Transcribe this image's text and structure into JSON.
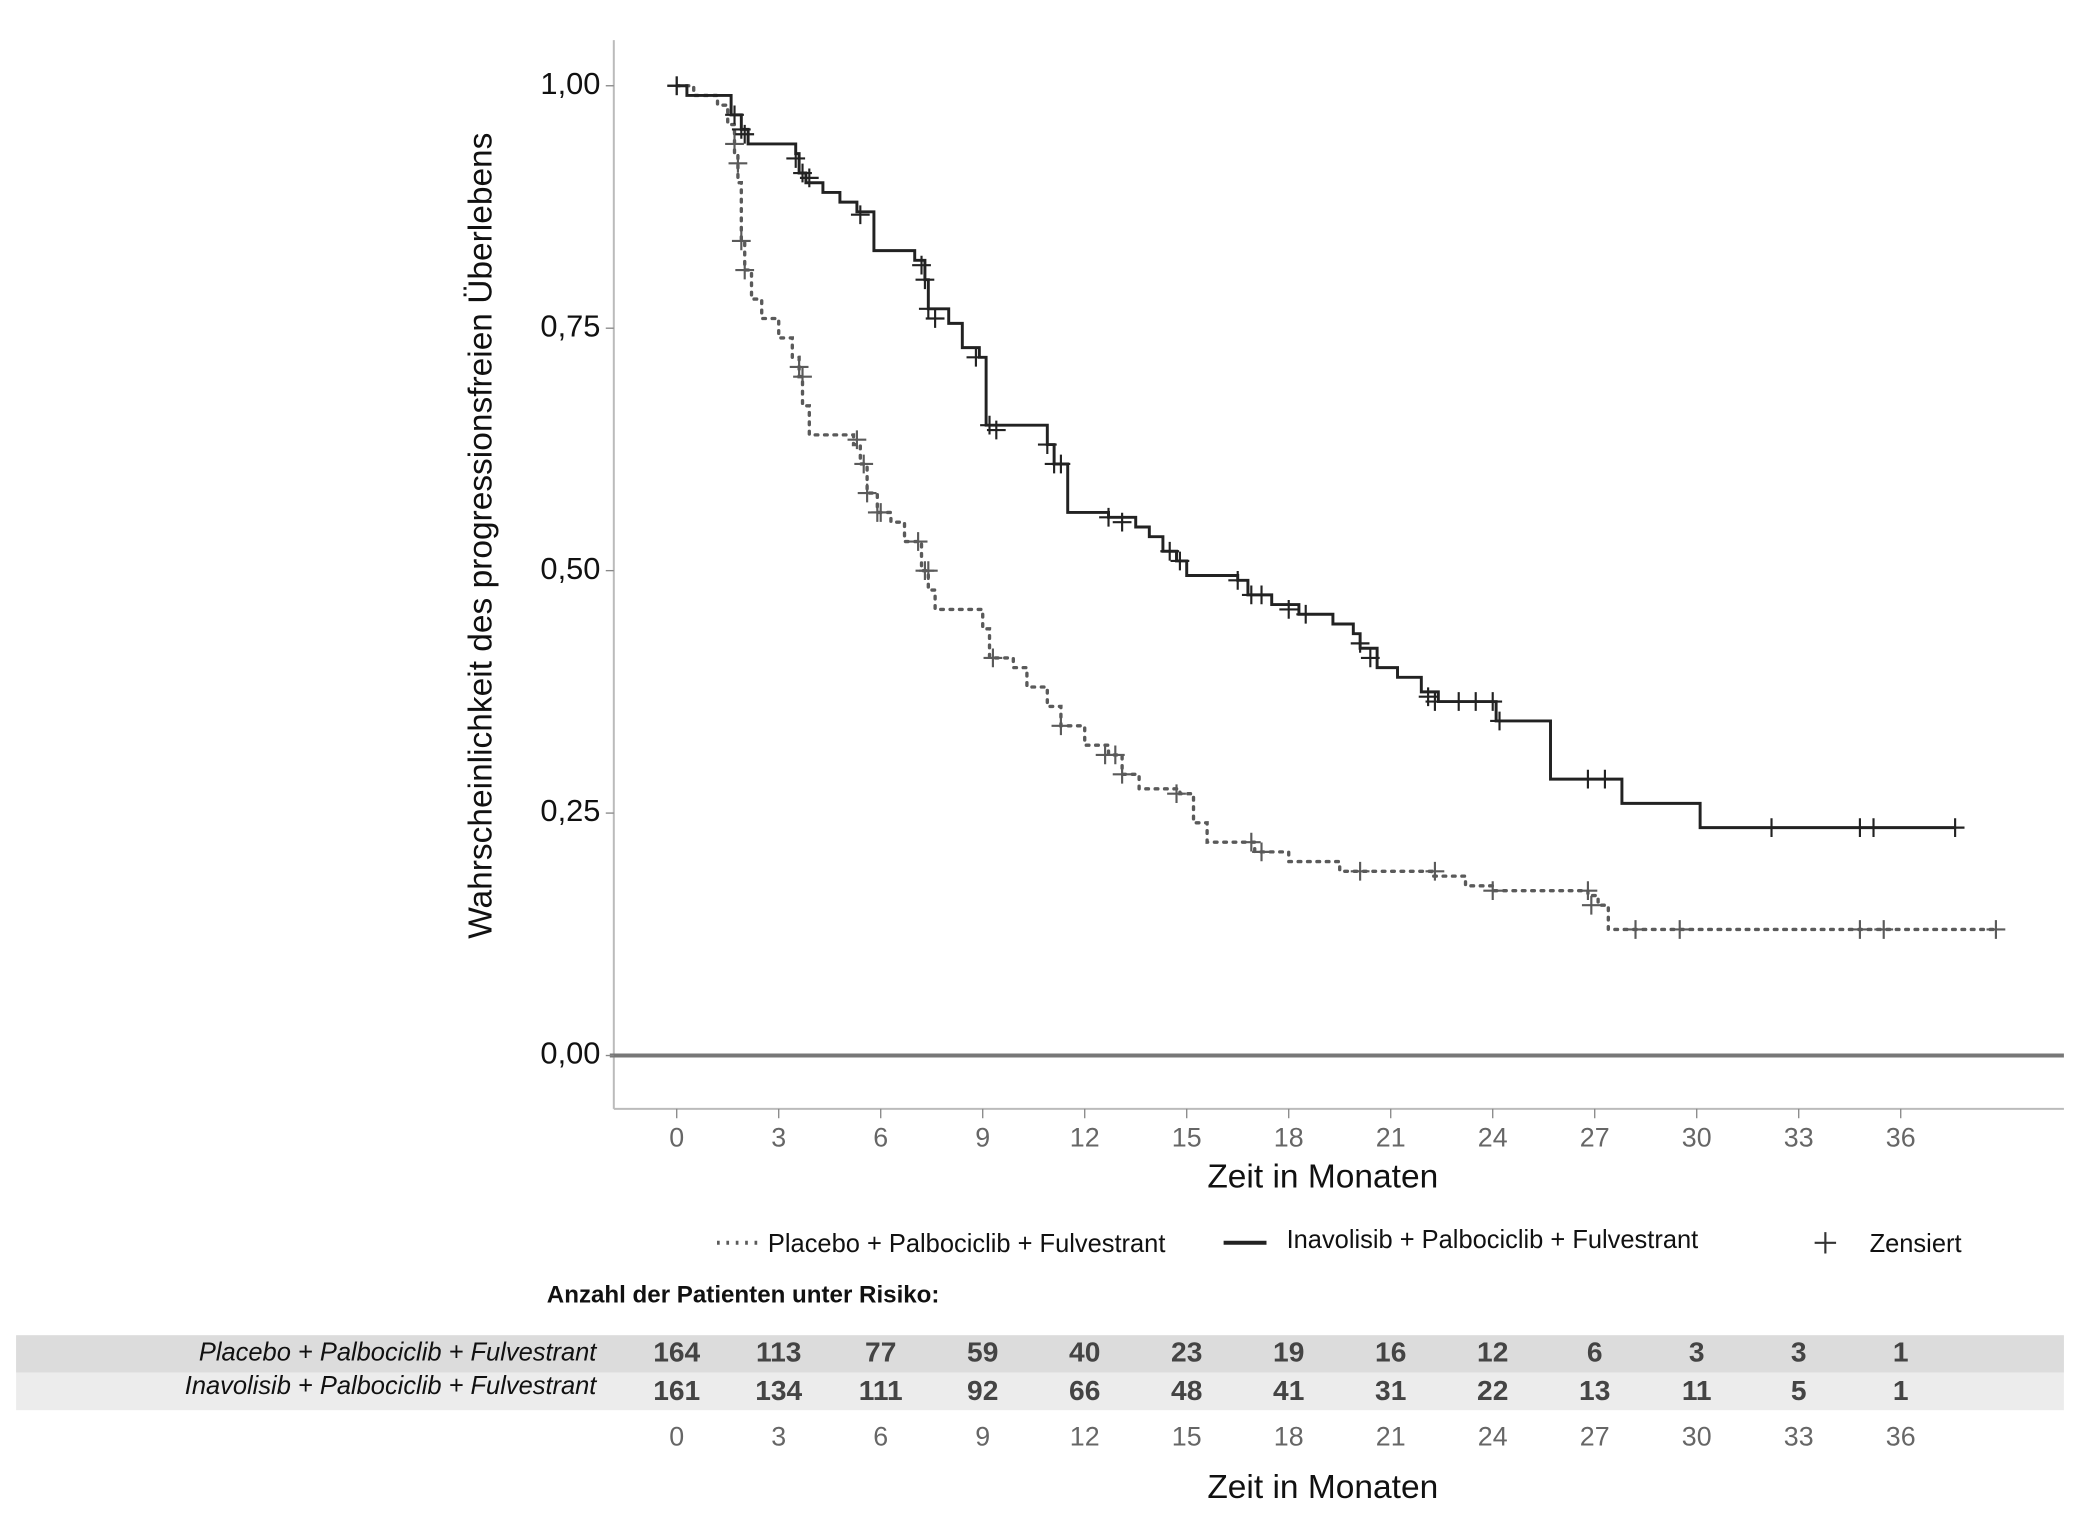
{
  "chart_data": {
    "type": "line",
    "step": "post",
    "ylabel": "Wahrscheinlichkeit des progressionsfreien Überlebens",
    "xlabel": "Zeit in Monaten",
    "xlim": [
      -1.85,
      40.8
    ],
    "ylim": [
      -0.055,
      1.047
    ],
    "xticks": [
      0,
      3,
      6,
      9,
      12,
      15,
      18,
      21,
      24,
      27,
      30,
      33,
      36
    ],
    "yticks": [
      {
        "value": 0,
        "label": "0,00"
      },
      {
        "value": 0.25,
        "label": "0,25"
      },
      {
        "value": 0.5,
        "label": "0,50"
      },
      {
        "value": 0.75,
        "label": "0,75"
      },
      {
        "value": 1,
        "label": "1,00"
      }
    ],
    "grid": false,
    "legend": "bottom",
    "censor_label": "Zensiert",
    "series": [
      {
        "name": "Placebo + Palbociclib + Fulvestrant",
        "color": "#5a5a5a",
        "dash": "dotted",
        "x": [
          0,
          0.5,
          1.2,
          1.5,
          1.7,
          1.8,
          1.9,
          2.0,
          2.2,
          2.5,
          3.0,
          3.4,
          3.6,
          3.7,
          3.9,
          5.2,
          5.4,
          5.6,
          5.9,
          6.3,
          6.7,
          7.2,
          7.4,
          7.6,
          9.0,
          9.2,
          9.9,
          10.3,
          10.9,
          11.3,
          12.0,
          12.7,
          13.1,
          13.6,
          14.8,
          15.2,
          15.6,
          17.0,
          18.0,
          19.5,
          22.2,
          23.2,
          24.0,
          26.8,
          27.1,
          27.4,
          38.8
        ],
        "values": [
          1.0,
          0.99,
          0.98,
          0.96,
          0.93,
          0.9,
          0.84,
          0.81,
          0.78,
          0.76,
          0.74,
          0.72,
          0.7,
          0.67,
          0.64,
          0.63,
          0.61,
          0.58,
          0.56,
          0.55,
          0.53,
          0.5,
          0.48,
          0.46,
          0.44,
          0.41,
          0.4,
          0.38,
          0.36,
          0.34,
          0.32,
          0.31,
          0.29,
          0.275,
          0.27,
          0.24,
          0.22,
          0.21,
          0.2,
          0.19,
          0.185,
          0.175,
          0.17,
          0.165,
          0.155,
          0.13,
          0.13
        ],
        "censored_x": [
          0,
          1.7,
          1.8,
          1.9,
          2.0,
          3.6,
          3.7,
          5.3,
          5.5,
          5.6,
          5.9,
          6.0,
          7.1,
          7.3,
          7.4,
          9.3,
          11.3,
          12.6,
          12.9,
          13.1,
          14.7,
          16.9,
          17.2,
          20.1,
          22.3,
          24.0,
          26.8,
          26.9,
          28.2,
          29.5,
          34.8,
          35.5,
          38.8
        ],
        "censored_values": [
          1.0,
          0.94,
          0.92,
          0.84,
          0.81,
          0.71,
          0.7,
          0.635,
          0.61,
          0.58,
          0.56,
          0.56,
          0.53,
          0.5,
          0.5,
          0.41,
          0.34,
          0.31,
          0.31,
          0.29,
          0.27,
          0.22,
          0.21,
          0.19,
          0.19,
          0.17,
          0.17,
          0.155,
          0.13,
          0.13,
          0.13,
          0.13,
          0.13
        ]
      },
      {
        "name": "Inavolisib + Palbociclib + Fulvestrant",
        "color": "#222222",
        "dash": "solid",
        "x": [
          0,
          0.3,
          1.6,
          1.9,
          2.1,
          3.5,
          3.6,
          3.8,
          4.3,
          4.8,
          5.3,
          5.8,
          7.0,
          7.3,
          7.4,
          8.0,
          8.4,
          8.9,
          9.1,
          10.9,
          11.1,
          11.5,
          12.7,
          13.5,
          13.9,
          14.3,
          14.7,
          15.0,
          16.5,
          16.8,
          17.5,
          18.3,
          19.3,
          19.9,
          20.1,
          20.6,
          21.2,
          21.9,
          22.4,
          24.1,
          25.7,
          27.8,
          30.1,
          37.6
        ],
        "values": [
          1.0,
          0.99,
          0.97,
          0.955,
          0.94,
          0.93,
          0.91,
          0.9,
          0.89,
          0.88,
          0.87,
          0.83,
          0.82,
          0.8,
          0.77,
          0.755,
          0.73,
          0.72,
          0.65,
          0.63,
          0.61,
          0.56,
          0.555,
          0.545,
          0.535,
          0.52,
          0.51,
          0.495,
          0.49,
          0.475,
          0.465,
          0.455,
          0.445,
          0.435,
          0.42,
          0.4,
          0.39,
          0.375,
          0.365,
          0.345,
          0.285,
          0.26,
          0.235,
          0.235
        ],
        "censored_x": [
          0,
          1.7,
          1.9,
          2.0,
          3.5,
          3.7,
          3.9,
          5.4,
          7.2,
          7.3,
          7.4,
          7.6,
          8.8,
          9.2,
          9.4,
          10.9,
          11.1,
          11.3,
          12.7,
          13.1,
          14.5,
          14.8,
          16.5,
          16.9,
          17.2,
          18.0,
          18.5,
          20.1,
          20.4,
          22.1,
          22.3,
          23.0,
          23.5,
          24.0,
          24.2,
          26.8,
          27.3,
          32.2,
          34.8,
          35.2,
          37.6
        ],
        "censored_values": [
          1.0,
          0.97,
          0.955,
          0.95,
          0.925,
          0.91,
          0.905,
          0.867,
          0.815,
          0.8,
          0.77,
          0.76,
          0.72,
          0.65,
          0.645,
          0.63,
          0.61,
          0.61,
          0.555,
          0.55,
          0.52,
          0.51,
          0.49,
          0.475,
          0.475,
          0.46,
          0.455,
          0.425,
          0.41,
          0.37,
          0.365,
          0.365,
          0.365,
          0.365,
          0.345,
          0.285,
          0.285,
          0.235,
          0.235,
          0.235,
          0.235
        ]
      }
    ]
  },
  "risk_table": {
    "title": "Anzahl der Patienten unter Risiko:",
    "xlabel": "Zeit in Monaten",
    "times": [
      0,
      3,
      6,
      9,
      12,
      15,
      18,
      21,
      24,
      27,
      30,
      33,
      36
    ],
    "rows": [
      {
        "name": "Placebo + Palbociclib + Fulvestrant",
        "counts": [
          164,
          113,
          77,
          59,
          40,
          23,
          19,
          16,
          12,
          6,
          3,
          3,
          1
        ]
      },
      {
        "name": "Inavolisib + Palbociclib + Fulvestrant",
        "counts": [
          161,
          134,
          111,
          92,
          66,
          48,
          41,
          31,
          22,
          13,
          11,
          5,
          1
        ]
      }
    ]
  }
}
